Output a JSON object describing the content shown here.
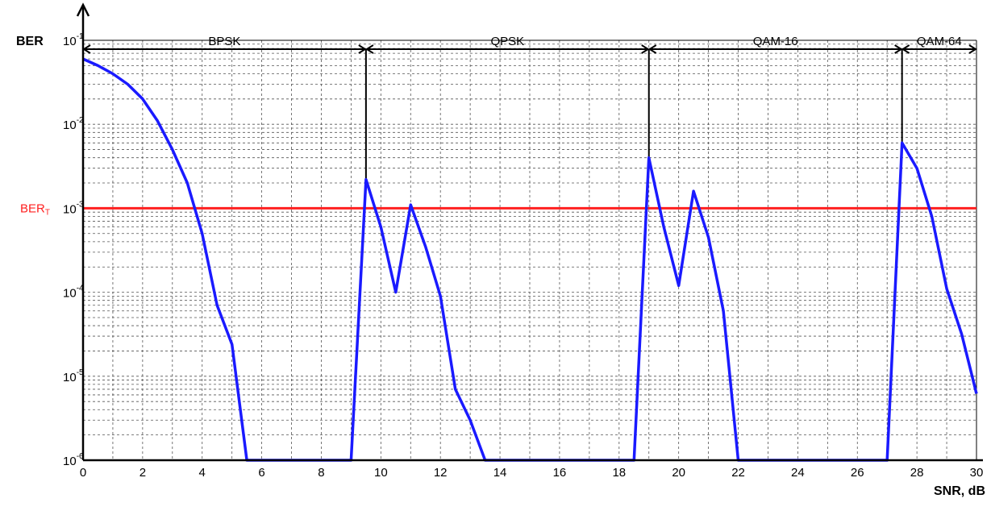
{
  "chart_data": {
    "type": "line",
    "xlabel": "SNR, dB",
    "ylabel": "BER",
    "xlim": [
      0,
      30
    ],
    "ylim": [
      1e-06,
      0.1
    ],
    "yscale": "log",
    "grid": true,
    "x_ticks": [
      "0",
      "2",
      "4",
      "6",
      "8",
      "10",
      "12",
      "14",
      "16",
      "18",
      "20",
      "22",
      "24",
      "26",
      "28",
      "30"
    ],
    "y_ticks": [
      {
        "value": 0.1,
        "base": "10",
        "exp": "-1"
      },
      {
        "value": 0.01,
        "base": "10",
        "exp": "-2"
      },
      {
        "value": 0.001,
        "base": "10",
        "exp": "-3"
      },
      {
        "value": 0.0001,
        "base": "10",
        "exp": "-4"
      },
      {
        "value": 1e-05,
        "base": "10",
        "exp": "-5"
      },
      {
        "value": 1e-06,
        "base": "10",
        "exp": "-6"
      }
    ],
    "threshold": {
      "label_main": "BER",
      "label_sub": "T",
      "value": 0.001,
      "color": "#ff2020"
    },
    "regions": [
      {
        "name": "BPSK",
        "x_start": 0,
        "x_end": 9.5
      },
      {
        "name": "QPSK",
        "x_start": 9.5,
        "x_end": 19
      },
      {
        "name": "QAM-16",
        "x_start": 19,
        "x_end": 27.5
      },
      {
        "name": "QAM-64",
        "x_start": 27.5,
        "x_end": 30
      }
    ],
    "series": [
      {
        "color": "#1a1aff",
        "x": [
          0,
          0.5,
          1,
          1.5,
          2,
          2.5,
          3,
          3.5,
          4,
          4.5,
          5,
          5.5,
          9,
          9.5,
          10,
          10.5,
          11,
          11.5,
          12,
          12.5,
          13,
          13.5,
          18.5,
          19,
          19.5,
          20,
          20.5,
          21,
          21.5,
          22,
          27,
          27.5,
          28,
          28.5,
          29,
          29.5,
          30
        ],
        "y": [
          0.06,
          0.05,
          0.04,
          0.03,
          0.02,
          0.011,
          0.005,
          0.002,
          0.0005,
          7e-05,
          2.4e-05,
          1e-06,
          1e-06,
          0.0022,
          0.0006,
          0.0001,
          0.0011,
          0.00035,
          9e-05,
          7e-06,
          3e-06,
          1e-06,
          1e-06,
          0.004,
          0.0006,
          0.00012,
          0.0016,
          0.00045,
          6e-05,
          1e-06,
          1e-06,
          0.006,
          0.003,
          0.0008,
          0.00011,
          3.2e-05,
          6.2e-06
        ]
      }
    ]
  }
}
